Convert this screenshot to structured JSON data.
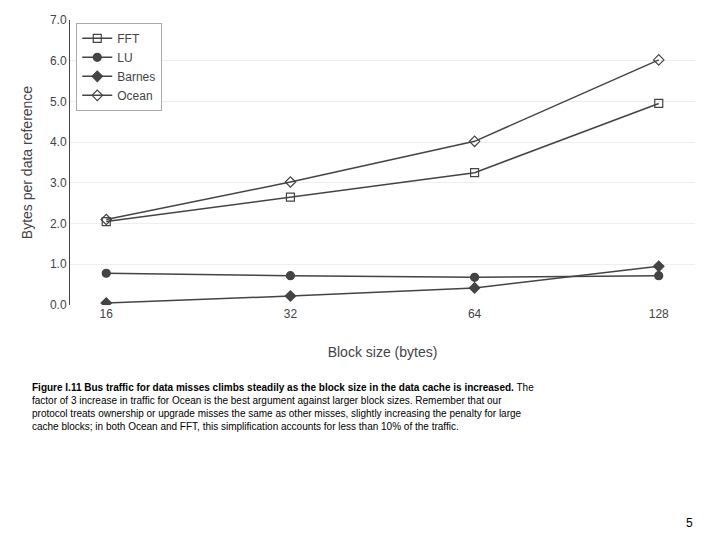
{
  "chart_data": {
    "type": "line",
    "categories": [
      "16",
      "32",
      "64",
      "128"
    ],
    "series": [
      {
        "name": "FFT",
        "color": "#444444",
        "marker": "square-open",
        "values": [
          2.05,
          2.65,
          3.25,
          4.95
        ]
      },
      {
        "name": "LU",
        "color": "#444444",
        "marker": "circle",
        "values": [
          0.78,
          0.72,
          0.68,
          0.72
        ]
      },
      {
        "name": "Barnes",
        "color": "#444444",
        "marker": "diamond",
        "values": [
          0.05,
          0.22,
          0.42,
          0.95
        ]
      },
      {
        "name": "Ocean",
        "color": "#444444",
        "marker": "diamond-open",
        "values": [
          2.1,
          3.02,
          4.02,
          6.02
        ]
      }
    ],
    "x_label": "Block size (bytes)",
    "y_label": "Bytes per data reference",
    "ylim": [
      0.0,
      7.0
    ],
    "yticks": [
      {
        "value": 0,
        "label": "0.0"
      },
      {
        "value": 1,
        "label": "1.0"
      },
      {
        "value": 2,
        "label": "2.0"
      },
      {
        "value": 3,
        "label": "3.0"
      },
      {
        "value": 4,
        "label": "4.0"
      },
      {
        "value": 5,
        "label": "5.0"
      },
      {
        "value": 6,
        "label": "6.0"
      },
      {
        "value": 7,
        "label": "7.0"
      }
    ],
    "grid": true,
    "legend": "upper left",
    "annotations": [
      "Figure I.11 Bus traffic for data misses climbs steadily as the block size in the data cache is increased.",
      "The factor of 3 increase in traffic for Ocean is the best argument against larger block sizes. Remember that our protocol treats ownership or upgrade misses the same as other misses, slightly increasing the penalty for large cache blocks; in both Ocean and FFT, this simplification accounts for less than 10% of the traffic.",
      "5"
    ]
  }
}
